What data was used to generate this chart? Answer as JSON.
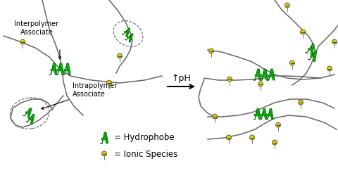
{
  "bg_color": "#ffffff",
  "green_color": "#00bb00",
  "dark_green": "#005500",
  "gray_color": "#999999",
  "dark_gray": "#666666",
  "yellow_color": "#ddcc00",
  "black": "#000000",
  "label_interpolymer": "Interpolymer\nAssociate",
  "label_intrapolymer": "Intrapolymer\nAssociate",
  "label_hydrophobe": "= Hydrophobe",
  "label_ionic": "= Ionic Species",
  "label_pH": "↑pH",
  "font_size_label": 7.0,
  "font_size_legend": 8.5
}
